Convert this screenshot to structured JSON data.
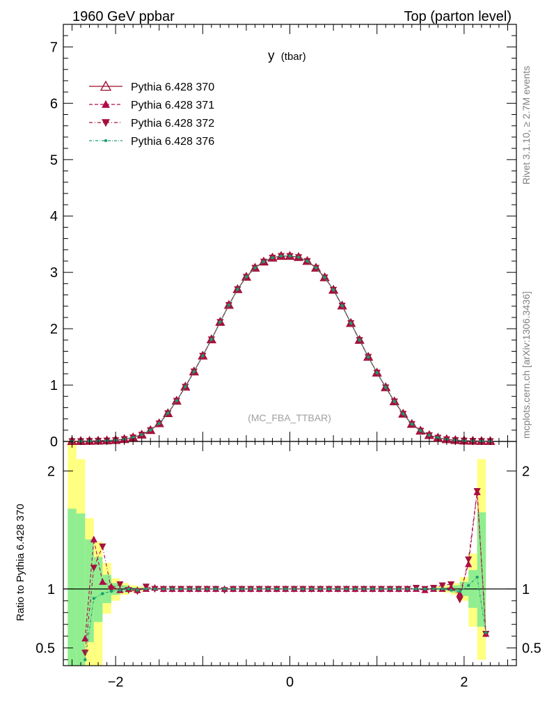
{
  "header": {
    "left": "1960 GeV ppbar",
    "right": "Top (parton level)"
  },
  "side_labels": {
    "rivet": "Rivet 3.1.10, ≥ 2.7M events",
    "mcplots": "mcplots.cern.ch [arXiv:1306.3436]"
  },
  "chart_data": [
    {
      "type": "line",
      "panel": "main",
      "title": "y",
      "title_sub": "(tbar)",
      "watermark": "(MC_FBA_TTBAR)",
      "xlim": [
        -2.6,
        2.6
      ],
      "ylim": [
        0,
        7.4
      ],
      "x_ticks": [
        -2,
        0,
        2
      ],
      "y_ticks": [
        0,
        1,
        2,
        3,
        4,
        5,
        6,
        7
      ],
      "y_tick_labels": [
        "0",
        "1",
        "2",
        "3",
        "4",
        "5",
        "6",
        "7"
      ],
      "legend": {
        "placement": "top-left"
      },
      "x": [
        -2.5,
        -2.4,
        -2.3,
        -2.2,
        -2.1,
        -2.0,
        -1.9,
        -1.8,
        -1.7,
        -1.6,
        -1.5,
        -1.4,
        -1.3,
        -1.2,
        -1.1,
        -1.0,
        -0.9,
        -0.8,
        -0.7,
        -0.6,
        -0.5,
        -0.4,
        -0.3,
        -0.2,
        -0.1,
        0.0,
        0.1,
        0.2,
        0.3,
        0.4,
        0.5,
        0.6,
        0.7,
        0.8,
        0.9,
        1.0,
        1.1,
        1.2,
        1.3,
        1.4,
        1.5,
        1.6,
        1.7,
        1.8,
        1.9,
        2.0,
        2.1,
        2.2,
        2.3
      ],
      "series": [
        {
          "name": "Pythia 6.428 370",
          "color": "#9b0a2a",
          "dash": "",
          "marker": "triangle-open",
          "values": [
            0.005,
            0.006,
            0.008,
            0.012,
            0.016,
            0.023,
            0.04,
            0.07,
            0.12,
            0.2,
            0.32,
            0.5,
            0.72,
            0.97,
            1.24,
            1.52,
            1.81,
            2.12,
            2.42,
            2.7,
            2.92,
            3.08,
            3.19,
            3.26,
            3.29,
            3.29,
            3.27,
            3.2,
            3.08,
            2.91,
            2.69,
            2.41,
            2.1,
            1.8,
            1.5,
            1.22,
            0.96,
            0.71,
            0.49,
            0.31,
            0.19,
            0.11,
            0.065,
            0.038,
            0.022,
            0.014,
            0.01,
            0.007,
            0.005
          ]
        },
        {
          "name": "Pythia 6.428 371",
          "color": "#b00c4a",
          "dash": "5,3",
          "marker": "triangle-up",
          "values": [
            0.005,
            0.006,
            0.008,
            0.012,
            0.016,
            0.023,
            0.04,
            0.07,
            0.12,
            0.2,
            0.32,
            0.5,
            0.72,
            0.97,
            1.24,
            1.52,
            1.81,
            2.12,
            2.42,
            2.7,
            2.92,
            3.08,
            3.19,
            3.26,
            3.29,
            3.29,
            3.27,
            3.2,
            3.08,
            2.91,
            2.69,
            2.41,
            2.1,
            1.8,
            1.5,
            1.22,
            0.96,
            0.71,
            0.49,
            0.31,
            0.19,
            0.11,
            0.065,
            0.038,
            0.022,
            0.014,
            0.01,
            0.007,
            0.005
          ]
        },
        {
          "name": "Pythia 6.428 372",
          "color": "#a3123c",
          "dash": "5,3,1,3",
          "marker": "triangle-down",
          "values": [
            0.005,
            0.006,
            0.008,
            0.012,
            0.016,
            0.023,
            0.04,
            0.07,
            0.12,
            0.2,
            0.32,
            0.5,
            0.72,
            0.97,
            1.24,
            1.52,
            1.81,
            2.12,
            2.42,
            2.7,
            2.92,
            3.08,
            3.19,
            3.26,
            3.29,
            3.29,
            3.27,
            3.2,
            3.08,
            2.91,
            2.69,
            2.41,
            2.1,
            1.8,
            1.5,
            1.22,
            0.96,
            0.71,
            0.49,
            0.31,
            0.19,
            0.11,
            0.065,
            0.038,
            0.022,
            0.014,
            0.01,
            0.007,
            0.005
          ]
        },
        {
          "name": "Pythia 6.428 376",
          "color": "#1a9e70",
          "dash": "4,2,1,2",
          "marker": "dot",
          "values": [
            0.005,
            0.006,
            0.008,
            0.012,
            0.016,
            0.023,
            0.04,
            0.07,
            0.12,
            0.2,
            0.32,
            0.5,
            0.72,
            0.97,
            1.24,
            1.52,
            1.81,
            2.12,
            2.42,
            2.7,
            2.92,
            3.08,
            3.19,
            3.26,
            3.29,
            3.29,
            3.27,
            3.2,
            3.08,
            2.91,
            2.69,
            2.41,
            2.1,
            1.8,
            1.5,
            1.22,
            0.96,
            0.71,
            0.49,
            0.31,
            0.19,
            0.11,
            0.065,
            0.038,
            0.022,
            0.014,
            0.01,
            0.007,
            0.005
          ]
        }
      ]
    },
    {
      "type": "line",
      "panel": "ratio",
      "ylabel": "Ratio to Pythia 6.428 370",
      "xlim": [
        -2.6,
        2.6
      ],
      "ylim": [
        0.35,
        2.25
      ],
      "x_ticks": [
        -2,
        0,
        2
      ],
      "x_tick_labels": [
        "−2",
        "0",
        "2"
      ],
      "y_ticks": [
        0.5,
        1,
        2
      ],
      "y_tick_labels": [
        "0.5",
        "1",
        "2"
      ],
      "reference_line": 1,
      "bands": {
        "yellow_color": "#ffff80",
        "green_color": "#90ee90",
        "x": [
          -2.5,
          -2.4,
          -2.3,
          -2.2,
          -2.1,
          -2.0,
          -1.9,
          -1.8,
          -1.7,
          1.7,
          1.8,
          1.9,
          2.0,
          2.1,
          2.2
        ],
        "yellow_lo": [
          0.3,
          0.3,
          0.3,
          0.3,
          0.79,
          0.9,
          0.95,
          0.97,
          0.98,
          0.98,
          0.97,
          0.95,
          0.9,
          0.68,
          0.4
        ],
        "yellow_hi": [
          2.25,
          2.1,
          1.6,
          1.4,
          1.22,
          1.09,
          1.05,
          1.03,
          1.02,
          1.02,
          1.03,
          1.05,
          1.1,
          1.3,
          2.1
        ],
        "green_lo": [
          0.3,
          0.3,
          0.55,
          0.72,
          0.88,
          0.95,
          0.97,
          0.985,
          0.99,
          0.99,
          0.985,
          0.97,
          0.94,
          0.84,
          0.68
        ],
        "green_hi": [
          1.68,
          1.64,
          1.42,
          1.27,
          1.12,
          1.05,
          1.03,
          1.015,
          1.01,
          1.01,
          1.015,
          1.03,
          1.06,
          1.16,
          1.65
        ]
      },
      "x": [
        -2.35,
        -2.25,
        -2.15,
        -2.05,
        -1.95,
        -1.85,
        -1.75,
        -1.65,
        -1.55,
        -1.45,
        -1.35,
        -1.25,
        -1.15,
        -1.05,
        -0.95,
        -0.85,
        -0.75,
        -0.65,
        -0.55,
        -0.45,
        -0.35,
        -0.25,
        -0.15,
        -0.05,
        0.05,
        0.15,
        0.25,
        0.35,
        0.45,
        0.55,
        0.65,
        0.75,
        0.85,
        0.95,
        1.05,
        1.15,
        1.25,
        1.35,
        1.45,
        1.55,
        1.65,
        1.75,
        1.85,
        1.95,
        2.05,
        2.15,
        2.25
      ],
      "series": [
        {
          "name": "Pythia 6.428 371",
          "color": "#b00c4a",
          "dash": "5,3",
          "marker": "triangle-up",
          "values": [
            0.58,
            1.42,
            1.06,
            1.02,
            0.99,
            1.0,
            0.99,
            1.0,
            1.01,
            1.0,
            1.0,
            1.0,
            1.0,
            1.0,
            1.0,
            1.0,
            1.0,
            1.0,
            1.0,
            1.0,
            1.0,
            1.0,
            1.0,
            1.0,
            1.0,
            1.0,
            1.0,
            1.0,
            1.0,
            1.0,
            1.0,
            1.0,
            1.0,
            1.0,
            1.0,
            1.0,
            1.0,
            1.0,
            1.0,
            0.99,
            1.0,
            1.0,
            1.01,
            0.96,
            1.21,
            1.82,
            0.62
          ]
        },
        {
          "name": "Pythia 6.428 372",
          "color": "#a3123c",
          "dash": "5,3,1,3",
          "marker": "triangle-down",
          "values": [
            0.46,
            1.18,
            1.36,
            1.0,
            1.04,
            0.99,
            0.98,
            1.02,
            1.0,
            1.0,
            1.0,
            1.0,
            1.0,
            1.0,
            1.0,
            1.0,
            0.99,
            1.0,
            1.0,
            1.0,
            1.0,
            1.0,
            1.0,
            1.0,
            1.0,
            1.0,
            1.0,
            1.0,
            1.0,
            1.0,
            1.0,
            1.0,
            1.0,
            1.0,
            1.0,
            1.0,
            1.0,
            1.0,
            1.01,
            1.0,
            1.01,
            1.03,
            1.04,
            0.91,
            1.25,
            1.83,
            0.62
          ]
        },
        {
          "name": "Pythia 6.428 376",
          "color": "#1a9e70",
          "dash": "4,2,1,2",
          "marker": "dot",
          "values": [
            0.4,
            0.92,
            0.96,
            0.98,
            0.99,
            1.0,
            0.99,
            1.0,
            1.0,
            1.0,
            1.0,
            1.0,
            1.0,
            1.0,
            1.0,
            1.0,
            1.0,
            1.0,
            1.0,
            1.0,
            1.0,
            1.0,
            1.0,
            1.0,
            1.0,
            1.0,
            1.0,
            1.0,
            1.0,
            1.0,
            1.0,
            1.0,
            1.0,
            1.0,
            1.0,
            1.0,
            1.0,
            1.0,
            1.0,
            1.0,
            1.0,
            1.0,
            0.99,
            0.98,
            1.03,
            1.1,
            0.63
          ]
        }
      ]
    }
  ]
}
